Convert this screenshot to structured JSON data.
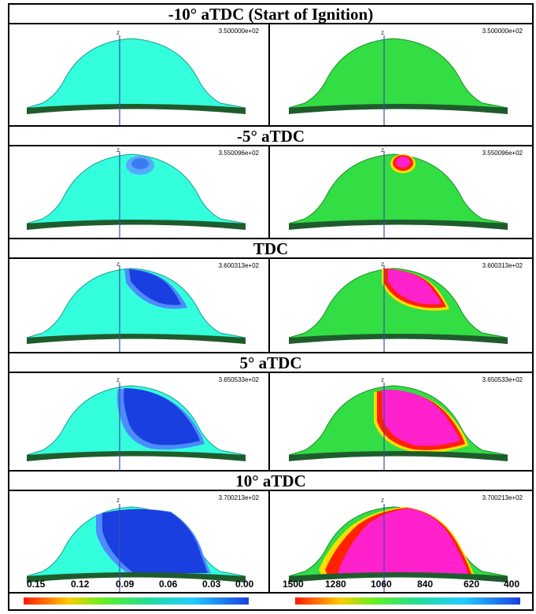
{
  "panels": [
    {
      "title": "-10° aTDC (Start of Ignition)",
      "time_left": "3.500000e+02",
      "time_right": "3.500000e+02"
    },
    {
      "title": "-5° aTDC",
      "time_left": "3.550096e+02",
      "time_right": "3.550096e+02"
    },
    {
      "title": "TDC",
      "time_left": "3.600313e+02",
      "time_right": "3.600313e+02"
    },
    {
      "title": "5° aTDC",
      "time_left": "3.650533e+02",
      "time_right": "3.650533e+02"
    },
    {
      "title": "10° aTDC",
      "time_left": "3.700213e+02",
      "time_right": "3.700213e+02"
    }
  ],
  "axis_label": "z",
  "colorbar_left": {
    "ticks": [
      "0.15",
      "0.12",
      "0.09",
      "0.06",
      "0.03",
      "0.00"
    ]
  },
  "colorbar_right": {
    "ticks": [
      "1500",
      "1280",
      "1060",
      "840",
      "620",
      "400"
    ]
  },
  "colors": {
    "left_background_field": "#33ffdd",
    "right_background_field": "#33dd44",
    "left_burned": "#1a3fe0",
    "right_burned": "#ff22cc",
    "right_flame_front": "#ff2200",
    "dome_base": "#1f5c2c"
  }
}
